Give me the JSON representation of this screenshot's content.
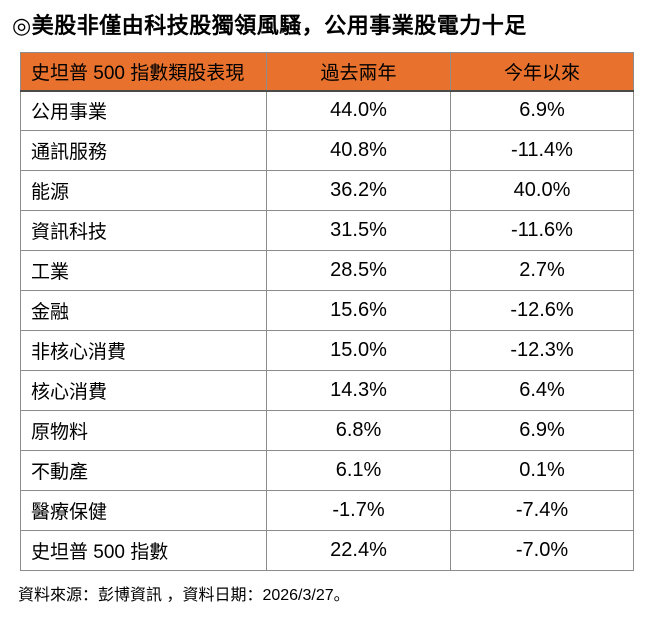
{
  "title": "◎美股非僅由科技股獨領風騷，公用事業股電力十足",
  "footer": "資料來源：彭博資訊 ，資料日期：2026/3/27。",
  "colors": {
    "header_bg": "#e8722d",
    "border": "#8c8c8c",
    "header_underline": "#4a4a4a",
    "text": "#000000",
    "background": "#ffffff"
  },
  "table": {
    "headers": [
      "史坦普 500 指數類股表現",
      "過去兩年",
      "今年以來"
    ],
    "rows": [
      {
        "sector": "公用事業",
        "two_year": "44.0%",
        "ytd": "6.9%"
      },
      {
        "sector": "通訊服務",
        "two_year": "40.8%",
        "ytd": "-11.4%"
      },
      {
        "sector": "能源",
        "two_year": "36.2%",
        "ytd": "40.0%"
      },
      {
        "sector": "資訊科技",
        "two_year": "31.5%",
        "ytd": "-11.6%"
      },
      {
        "sector": "工業",
        "two_year": "28.5%",
        "ytd": "2.7%"
      },
      {
        "sector": "金融",
        "two_year": "15.6%",
        "ytd": "-12.6%"
      },
      {
        "sector": "非核心消費",
        "two_year": "15.0%",
        "ytd": "-12.3%"
      },
      {
        "sector": "核心消費",
        "two_year": "14.3%",
        "ytd": "6.4%"
      },
      {
        "sector": "原物料",
        "two_year": "6.8%",
        "ytd": "6.9%"
      },
      {
        "sector": "不動產",
        "two_year": "6.1%",
        "ytd": "0.1%"
      },
      {
        "sector": "醫療保健",
        "two_year": "-1.7%",
        "ytd": "-7.4%"
      },
      {
        "sector": "史坦普 500 指數",
        "two_year": "22.4%",
        "ytd": "-7.0%"
      }
    ]
  },
  "chart_data": {
    "type": "table",
    "title": "史坦普 500 指數類股表現",
    "columns": [
      "史坦普 500 指數類股表現",
      "過去兩年",
      "今年以來"
    ],
    "units": "percent",
    "categories": [
      "公用事業",
      "通訊服務",
      "能源",
      "資訊科技",
      "工業",
      "金融",
      "非核心消費",
      "核心消費",
      "原物料",
      "不動產",
      "醫療保健",
      "史坦普 500 指數"
    ],
    "series": [
      {
        "name": "過去兩年",
        "values": [
          44.0,
          40.8,
          36.2,
          31.5,
          28.5,
          15.6,
          15.0,
          14.3,
          6.8,
          6.1,
          -1.7,
          22.4
        ]
      },
      {
        "name": "今年以來",
        "values": [
          6.9,
          -11.4,
          40.0,
          -11.6,
          2.7,
          -12.6,
          -12.3,
          6.4,
          6.9,
          0.1,
          -7.4,
          -7.0
        ]
      }
    ]
  }
}
